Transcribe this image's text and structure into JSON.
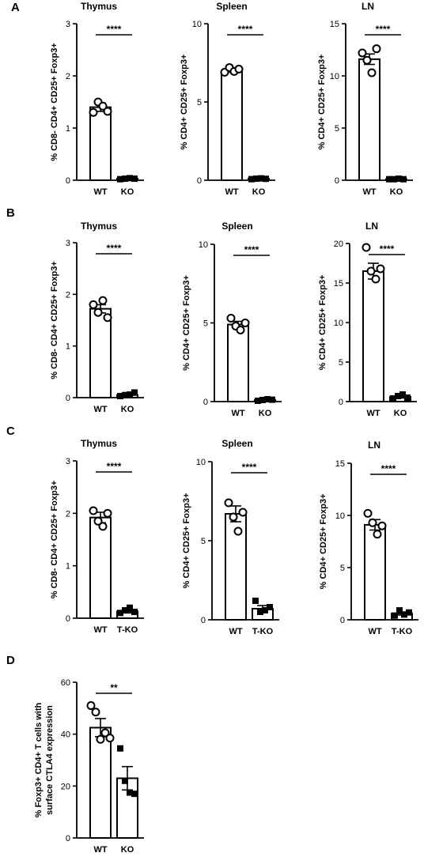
{
  "chart_data": [
    {
      "panel": "A",
      "type": "bar",
      "title": "Thymus",
      "ylabel": "% CD8- CD4+ CD25+ Foxp3+",
      "categories": [
        "WT",
        "KO"
      ],
      "ylim": [
        0,
        3
      ],
      "yticks": [
        0,
        1,
        2,
        3
      ],
      "values": [
        1.4,
        0.03
      ],
      "errors": [
        0.08,
        0.01
      ],
      "points": [
        [
          1.3,
          1.5,
          1.42,
          1.32
        ],
        [
          0.02,
          0.03,
          0.04,
          0.03
        ]
      ],
      "markers": [
        "circle",
        "square"
      ],
      "significance": "****"
    },
    {
      "panel": "A",
      "type": "bar",
      "title": "Spleen",
      "ylabel": "% CD4+ CD25+ Foxp3+",
      "categories": [
        "WT",
        "KO"
      ],
      "ylim": [
        0,
        10
      ],
      "yticks": [
        0,
        5,
        10
      ],
      "values": [
        7.0,
        0.1
      ],
      "errors": [
        0.1,
        0.03
      ],
      "points": [
        [
          6.9,
          7.2,
          6.95,
          7.1
        ],
        [
          0.07,
          0.1,
          0.12,
          0.09
        ]
      ],
      "markers": [
        "circle",
        "square"
      ],
      "significance": "****"
    },
    {
      "panel": "A",
      "type": "bar",
      "title": "LN",
      "ylabel": "% CD4+ CD25+ Foxp3+",
      "categories": [
        "WT",
        "KO"
      ],
      "ylim": [
        0,
        15
      ],
      "yticks": [
        0,
        5,
        10,
        15
      ],
      "values": [
        11.6,
        0.1
      ],
      "errors": [
        0.5,
        0.05
      ],
      "points": [
        [
          12.2,
          11.5,
          10.3,
          12.6
        ],
        [
          0.1,
          0.1,
          0.15,
          0.1
        ]
      ],
      "markers": [
        "circle",
        "square"
      ],
      "significance": "****"
    },
    {
      "panel": "B",
      "type": "bar",
      "title": "Thymus",
      "ylabel": "% CD8- CD4+ CD25+ Foxp3+",
      "categories": [
        "WT",
        "KO"
      ],
      "ylim": [
        0,
        3
      ],
      "yticks": [
        0,
        1,
        2,
        3
      ],
      "values": [
        1.72,
        0.05
      ],
      "errors": [
        0.08,
        0.02
      ],
      "points": [
        [
          1.8,
          1.65,
          1.88,
          1.55
        ],
        [
          0.03,
          0.05,
          0.06,
          0.1
        ]
      ],
      "markers": [
        "circle",
        "square"
      ],
      "significance": "****"
    },
    {
      "panel": "B",
      "type": "bar",
      "title": "Spleen",
      "ylabel": "% CD4+ CD25+ Foxp3+",
      "categories": [
        "WT",
        "KO"
      ],
      "ylim": [
        0,
        10
      ],
      "yticks": [
        0,
        5,
        10
      ],
      "values": [
        4.9,
        0.1
      ],
      "errors": [
        0.2,
        0.05
      ],
      "points": [
        [
          5.3,
          4.8,
          4.55,
          5.0
        ],
        [
          0.05,
          0.1,
          0.15,
          0.12
        ]
      ],
      "markers": [
        "circle",
        "square"
      ],
      "significance": "****"
    },
    {
      "panel": "B",
      "type": "bar",
      "title": "LN",
      "ylabel": "% CD4+ CD25+ Foxp3+",
      "categories": [
        "WT",
        "KO"
      ],
      "ylim": [
        0,
        20
      ],
      "yticks": [
        0,
        5,
        10,
        15,
        20
      ],
      "values": [
        16.5,
        0.6
      ],
      "errors": [
        1.0,
        0.15
      ],
      "points": [
        [
          19.5,
          16.5,
          15.5,
          16.8
        ],
        [
          0.4,
          0.7,
          0.9,
          0.5
        ]
      ],
      "markers": [
        "circle",
        "square"
      ],
      "significance": "****"
    },
    {
      "panel": "C",
      "type": "bar",
      "title": "Thymus",
      "ylabel": "% CD8- CD4+ CD25+ Foxp3+",
      "categories": [
        "WT",
        "T-KO"
      ],
      "ylim": [
        0,
        3
      ],
      "yticks": [
        0,
        1,
        2,
        3
      ],
      "values": [
        1.92,
        0.13
      ],
      "errors": [
        0.1,
        0.03
      ],
      "points": [
        [
          2.05,
          1.85,
          1.75,
          2.0
        ],
        [
          0.1,
          0.15,
          0.2,
          0.12
        ]
      ],
      "markers": [
        "circle",
        "square"
      ],
      "significance": "****"
    },
    {
      "panel": "C",
      "type": "bar",
      "title": "Spleen",
      "ylabel": "% CD4+ CD25+ Foxp3+",
      "categories": [
        "WT",
        "T-KO"
      ],
      "ylim": [
        0,
        10
      ],
      "yticks": [
        0,
        5,
        10
      ],
      "values": [
        6.7,
        0.7
      ],
      "errors": [
        0.5,
        0.2
      ],
      "points": [
        [
          7.4,
          6.5,
          5.6,
          6.8
        ],
        [
          1.2,
          0.5,
          0.6,
          0.8
        ]
      ],
      "markers": [
        "circle",
        "square"
      ],
      "significance": "****"
    },
    {
      "panel": "C",
      "type": "bar",
      "title": "LN",
      "ylabel": "% CD4+ CD25+ Foxp3+",
      "categories": [
        "WT",
        "T-KO"
      ],
      "ylim": [
        0,
        15
      ],
      "yticks": [
        0,
        5,
        10,
        15
      ],
      "values": [
        9.1,
        0.6
      ],
      "errors": [
        0.5,
        0.15
      ],
      "points": [
        [
          10.2,
          9.3,
          8.2,
          9.0
        ],
        [
          0.4,
          0.9,
          0.5,
          0.7
        ]
      ],
      "markers": [
        "circle",
        "square"
      ],
      "significance": "****"
    },
    {
      "panel": "D",
      "type": "bar",
      "title": "",
      "ylabel": "% Foxp3+ CD4+ T cells with surface CTLA4 expression",
      "categories": [
        "WT",
        "KO"
      ],
      "ylim": [
        0,
        60
      ],
      "yticks": [
        0,
        20,
        40,
        60
      ],
      "values": [
        42.5,
        23.0
      ],
      "errors": [
        3.5,
        4.5
      ],
      "points": [
        [
          51.0,
          48.5,
          38.0,
          40.5,
          38.5
        ],
        [
          34.5,
          22.0,
          17.5,
          17.0
        ]
      ],
      "markers": [
        "circle",
        "square"
      ],
      "significance": "**"
    }
  ]
}
